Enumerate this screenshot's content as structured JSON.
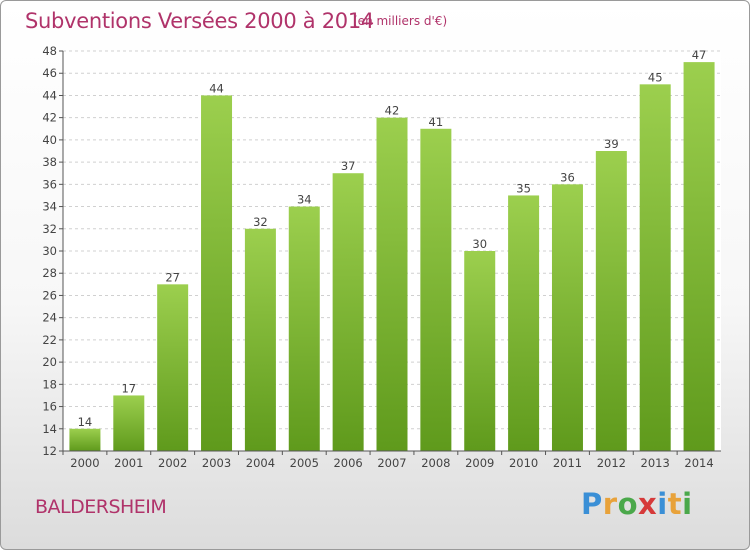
{
  "header": {
    "title": "Subventions Versées 2000 à 2014",
    "subtitle": "(en milliers d'€)"
  },
  "footer": {
    "commune": "BALDERSHEIM",
    "brand": [
      "P",
      "r",
      "o",
      "x",
      "i",
      "t",
      "i"
    ],
    "brand_colors": [
      "#3a8fd6",
      "#e8a23a",
      "#4aa84a",
      "#d63a3a",
      "#3a8fd6",
      "#e8a23a",
      "#4aa84a"
    ]
  },
  "chart_data": {
    "type": "bar",
    "title": "Subventions Versées 2000 à 2014",
    "subtitle": "(en milliers d'€)",
    "categories": [
      "2000",
      "2001",
      "2002",
      "2003",
      "2004",
      "2005",
      "2006",
      "2007",
      "2008",
      "2009",
      "2010",
      "2011",
      "2012",
      "2013",
      "2014"
    ],
    "values": [
      14,
      17,
      27,
      44,
      32,
      34,
      37,
      42,
      41,
      30,
      35,
      36,
      39,
      45,
      47
    ],
    "ylim": [
      12,
      48
    ],
    "yticks": [
      12,
      14,
      16,
      18,
      20,
      22,
      24,
      26,
      28,
      30,
      32,
      34,
      36,
      38,
      40,
      42,
      44,
      46,
      48
    ],
    "grid": true,
    "bar_color_top": "#9ccf4e",
    "bar_color_bottom": "#5f9a1c",
    "grid_color": "#d0d0d0",
    "label_color": "#444444"
  }
}
